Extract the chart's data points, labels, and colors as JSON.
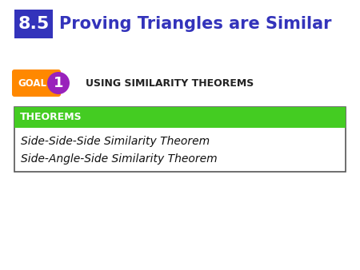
{
  "background_color": "#ffffff",
  "title_number": "8.5",
  "title_number_bg": "#3333bb",
  "title_number_color": "#ffffff",
  "title_text": "Proving Triangles are Similar",
  "title_color": "#3333bb",
  "goal_bg": "#ff8800",
  "goal_text": "GOAL",
  "goal_text_color": "#ffffff",
  "goal_num": "1",
  "goal_num_bg": "#9922bb",
  "goal_num_color": "#ffffff",
  "goal_label": "USING SIMILARITY THEOREMS",
  "goal_label_color": "#222222",
  "box_border_color": "#555555",
  "box_header_bg": "#44cc22",
  "box_header_text": "THEOREMS",
  "box_header_text_color": "#ffffff",
  "box_body_bg": "#ffffff",
  "theorem1": "Side-Side-Side Similarity Theorem",
  "theorem2": "Side-Angle-Side Similarity Theorem",
  "theorem_color": "#111111",
  "fig_w": 4.5,
  "fig_h": 3.38,
  "dpi": 100
}
